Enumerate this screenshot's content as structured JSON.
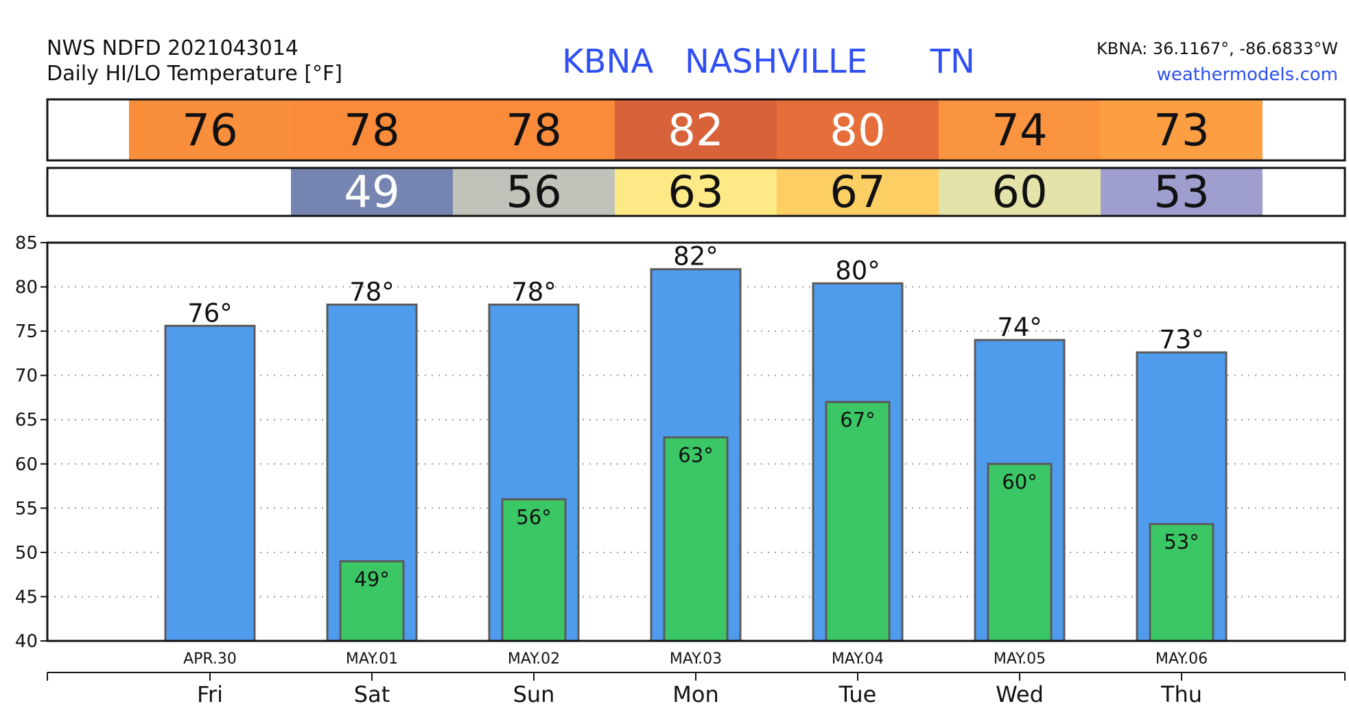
{
  "header": {
    "source_line": "NWS NDFD 2021043014",
    "product_line": "Daily HI/LO Temperature [°F]",
    "station_title": "KBNA   NASHVILLE      TN",
    "coords": "KBNA: 36.1167°, -86.6833°W",
    "site": "weathermodels.com"
  },
  "colors": {
    "title_blue": "#2f4ff2",
    "site_blue": "#2c4fef",
    "hi_bar": "#4f9bec",
    "lo_bar": "#3cc766",
    "bar_edge": "#5a5a5a"
  },
  "chart_data": {
    "type": "bar",
    "title": "Daily HI/LO Temperature [°F]",
    "categories": [
      "Fri",
      "Sat",
      "Sun",
      "Mon",
      "Tue",
      "Wed",
      "Thu"
    ],
    "dates": [
      "APR.30",
      "MAY.01",
      "MAY.02",
      "MAY.03",
      "MAY.04",
      "MAY.05",
      "MAY.06"
    ],
    "series": [
      {
        "name": "HI",
        "values": [
          76,
          78,
          78,
          82,
          80,
          74,
          73
        ],
        "bar_values": [
          75.6,
          78,
          78,
          82,
          80.4,
          74,
          72.6
        ]
      },
      {
        "name": "LO",
        "values": [
          null,
          49,
          56,
          63,
          67,
          60,
          53
        ],
        "bar_values": [
          null,
          49,
          56,
          63,
          67,
          60,
          53.2
        ]
      }
    ],
    "hi_labels": [
      "76°",
      "78°",
      "78°",
      "82°",
      "80°",
      "74°",
      "73°"
    ],
    "lo_labels": [
      "",
      "49°",
      "56°",
      "63°",
      "67°",
      "60°",
      "53°"
    ],
    "hi_band_colors": [
      "#f98e3b",
      "#f98b3a",
      "#f98b3a",
      "#d8633a",
      "#e56e3a",
      "#fb9440",
      "#fc9f42"
    ],
    "hi_band_text_colors": [
      "#111111",
      "#111111",
      "#111111",
      "#ffffff",
      "#ffffff",
      "#111111",
      "#111111"
    ],
    "lo_band_colors": [
      null,
      "#7584b0",
      "#c1c2ba",
      "#fdea86",
      "#fdce63",
      "#e4e3a9",
      "#9e9fcf"
    ],
    "lo_band_text_colors": [
      null,
      "#ffffff",
      "#111111",
      "#111111",
      "#111111",
      "#111111",
      "#111111"
    ],
    "ylim": [
      40,
      85
    ],
    "yticks": [
      40,
      45,
      50,
      55,
      60,
      65,
      70,
      75,
      80,
      85
    ],
    "grid": true,
    "xlabel": "",
    "ylabel": ""
  }
}
